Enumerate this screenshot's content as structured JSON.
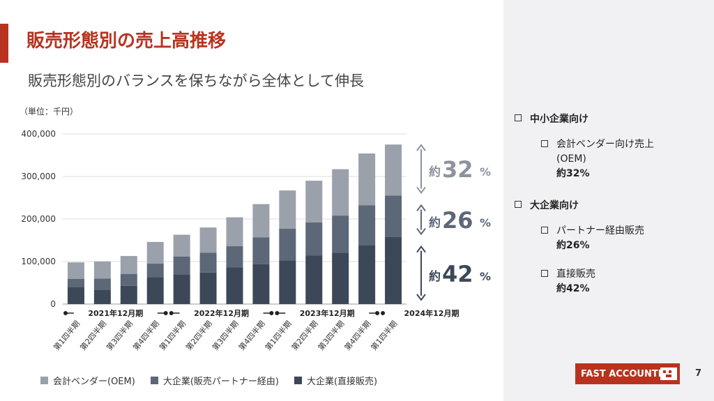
{
  "header": {
    "title": "販売形態別の売上高推移",
    "subtitle": "販売形態別のバランスを保ちながら全体として伸長",
    "accent_color": "#b8331f"
  },
  "chart_data": {
    "type": "bar",
    "stacked": true,
    "unit_label": "（単位：千円）",
    "categories": [
      "第1四半期",
      "第2四半期",
      "第3四半期",
      "第4四半期",
      "第1四半期",
      "第2四半期",
      "第3四半期",
      "第4四半期",
      "第1四半期",
      "第2四半期",
      "第3四半期",
      "第4四半期",
      "第1四半期"
    ],
    "period_labels": [
      "2021年12月期",
      "2022年12月期",
      "2023年12月期",
      "2024年12月期"
    ],
    "series": [
      {
        "name": "大企業(直接販売)",
        "color": "#3c4858",
        "values": [
          40000,
          34000,
          43000,
          63000,
          70000,
          74000,
          86000,
          94000,
          103000,
          114000,
          121000,
          139000,
          158000
        ]
      },
      {
        "name": "大企業(販売パートナー経由)",
        "color": "#5c6778",
        "values": [
          19000,
          26000,
          28000,
          32000,
          42000,
          47000,
          50000,
          63000,
          74000,
          78000,
          87000,
          93000,
          97000
        ]
      },
      {
        "name": "会計ベンダー(OEM)",
        "color": "#9aa1ab",
        "values": [
          39000,
          40000,
          42000,
          51000,
          51000,
          59000,
          68000,
          78000,
          90000,
          98000,
          109000,
          122000,
          120000
        ]
      }
    ],
    "ylim": [
      0,
      400000
    ],
    "yticks": [
      "0",
      "100,000",
      "200,000",
      "300,000",
      "400,000"
    ],
    "yticks_values": [
      0,
      100000,
      200000,
      300000,
      400000
    ],
    "grid": true,
    "legend_position": "bottom",
    "share_annotations": [
      {
        "prefix": "約",
        "value": "32",
        "suffix": "%",
        "series": "会計ベンダー(OEM)",
        "color": "#8c939e"
      },
      {
        "prefix": "約",
        "value": "26",
        "suffix": "%",
        "series": "大企業(販売パートナー経由)",
        "color": "#5c6778"
      },
      {
        "prefix": "約",
        "value": "42",
        "suffix": "%",
        "series": "大企業(直接販売)",
        "color": "#3c4858"
      }
    ]
  },
  "side_panel": {
    "groups": [
      {
        "label": "中小企業向け",
        "items": [
          {
            "text": "会計ベンダー向け売上",
            "text2": "(OEM)",
            "value": "約32%"
          }
        ]
      },
      {
        "label": "大企業向け",
        "items": [
          {
            "text": "パートナー経由販売",
            "value": "約26%"
          },
          {
            "text": "直接販売",
            "value": "約42%"
          }
        ]
      }
    ]
  },
  "footer": {
    "logo_text": "FAST ACCOUNTING",
    "page_number": "7"
  }
}
